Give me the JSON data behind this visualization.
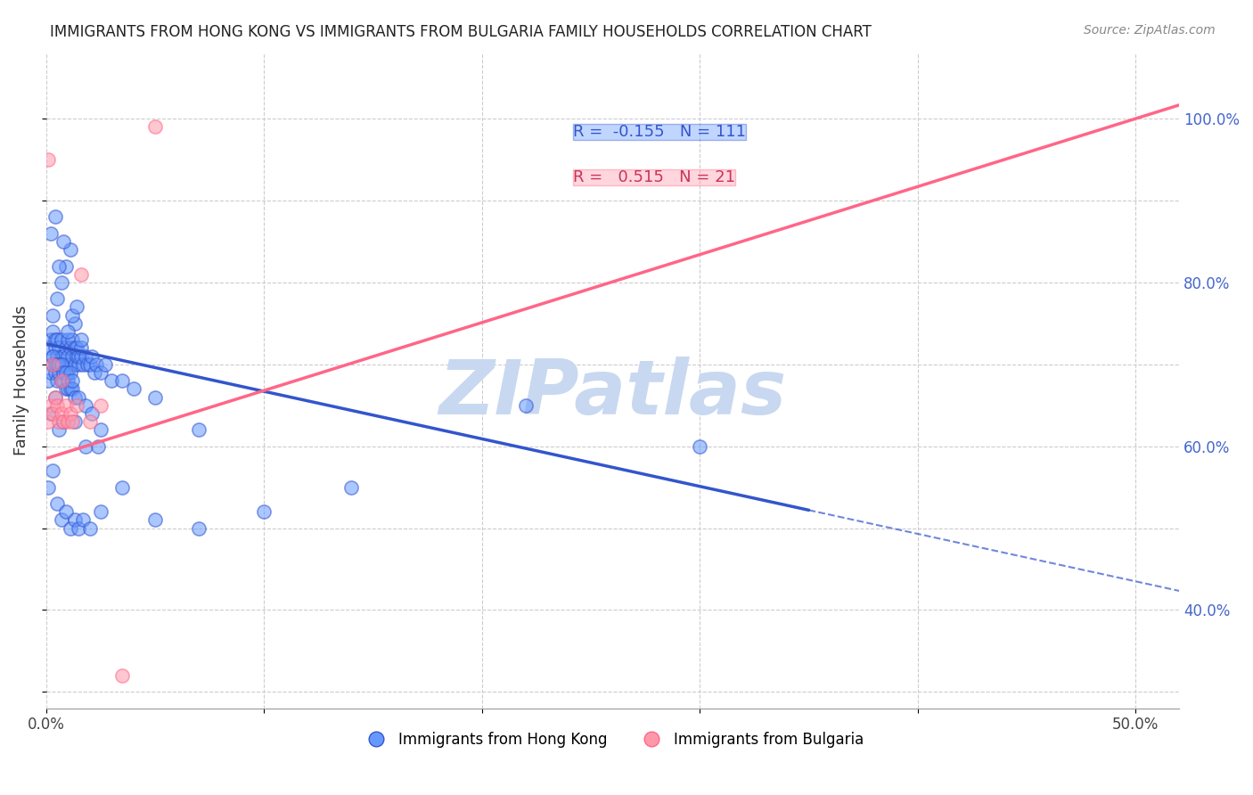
{
  "title": "IMMIGRANTS FROM HONG KONG VS IMMIGRANTS FROM BULGARIA FAMILY HOUSEHOLDS CORRELATION CHART",
  "source": "Source: ZipAtlas.com",
  "xlabel_bottom": "",
  "ylabel": "Family Households",
  "legend_labels": [
    "Immigrants from Hong Kong",
    "Immigrants from Bulgaria"
  ],
  "x_ticks": [
    0.0,
    0.1,
    0.2,
    0.3,
    0.4,
    0.5
  ],
  "x_tick_labels": [
    "0.0%",
    "",
    "",
    "",
    "",
    "50.0%"
  ],
  "y_ticks": [
    0.3,
    0.4,
    0.5,
    0.6,
    0.7,
    0.8,
    0.9,
    1.0
  ],
  "y_tick_labels_right": [
    "",
    "40.0%",
    "",
    "60.0%",
    "",
    "80.0%",
    "",
    "100.0%"
  ],
  "xlim": [
    0.0,
    0.52
  ],
  "ylim": [
    0.28,
    1.08
  ],
  "R_blue": -0.155,
  "N_blue": 111,
  "R_pink": 0.515,
  "N_pink": 21,
  "blue_color": "#6699ff",
  "pink_color": "#ff99aa",
  "blue_line_color": "#3355cc",
  "pink_line_color": "#ff6688",
  "watermark": "ZIPatlas",
  "watermark_color": "#c8d8f0",
  "blue_intercept": 0.725,
  "blue_slope": -0.58,
  "pink_intercept": 0.585,
  "pink_slope": 0.83,
  "hk_x": [
    0.001,
    0.002,
    0.003,
    0.003,
    0.004,
    0.004,
    0.005,
    0.005,
    0.006,
    0.006,
    0.007,
    0.007,
    0.008,
    0.008,
    0.009,
    0.009,
    0.01,
    0.01,
    0.01,
    0.011,
    0.011,
    0.012,
    0.012,
    0.013,
    0.013,
    0.014,
    0.014,
    0.015,
    0.015,
    0.016,
    0.016,
    0.017,
    0.018,
    0.019,
    0.02,
    0.021,
    0.022,
    0.023,
    0.025,
    0.027,
    0.03,
    0.035,
    0.04,
    0.05,
    0.07,
    0.001,
    0.002,
    0.003,
    0.003,
    0.004,
    0.004,
    0.005,
    0.005,
    0.006,
    0.006,
    0.007,
    0.007,
    0.008,
    0.008,
    0.009,
    0.009,
    0.01,
    0.01,
    0.011,
    0.011,
    0.012,
    0.012,
    0.013,
    0.015,
    0.018,
    0.021,
    0.025,
    0.003,
    0.005,
    0.007,
    0.009,
    0.011,
    0.013,
    0.002,
    0.004,
    0.006,
    0.008,
    0.01,
    0.012,
    0.014,
    0.016,
    0.002,
    0.004,
    0.006,
    0.008,
    0.013,
    0.018,
    0.024,
    0.001,
    0.003,
    0.005,
    0.007,
    0.009,
    0.011,
    0.013,
    0.015,
    0.017,
    0.02,
    0.025,
    0.035,
    0.05,
    0.07,
    0.1,
    0.14,
    0.22,
    0.3
  ],
  "hk_y": [
    0.72,
    0.73,
    0.71,
    0.74,
    0.72,
    0.73,
    0.71,
    0.73,
    0.7,
    0.72,
    0.71,
    0.73,
    0.7,
    0.71,
    0.7,
    0.72,
    0.69,
    0.71,
    0.73,
    0.7,
    0.72,
    0.71,
    0.73,
    0.7,
    0.72,
    0.71,
    0.72,
    0.7,
    0.71,
    0.71,
    0.72,
    0.7,
    0.71,
    0.7,
    0.7,
    0.71,
    0.69,
    0.7,
    0.69,
    0.7,
    0.68,
    0.68,
    0.67,
    0.66,
    0.62,
    0.68,
    0.69,
    0.7,
    0.71,
    0.69,
    0.7,
    0.68,
    0.7,
    0.69,
    0.7,
    0.68,
    0.7,
    0.68,
    0.69,
    0.67,
    0.69,
    0.67,
    0.68,
    0.67,
    0.69,
    0.67,
    0.68,
    0.66,
    0.66,
    0.65,
    0.64,
    0.62,
    0.76,
    0.78,
    0.8,
    0.82,
    0.84,
    0.75,
    0.86,
    0.88,
    0.82,
    0.85,
    0.74,
    0.76,
    0.77,
    0.73,
    0.64,
    0.66,
    0.62,
    0.63,
    0.63,
    0.6,
    0.6,
    0.55,
    0.57,
    0.53,
    0.51,
    0.52,
    0.5,
    0.51,
    0.5,
    0.51,
    0.5,
    0.52,
    0.55,
    0.51,
    0.5,
    0.52,
    0.55,
    0.65,
    0.6
  ],
  "bg_x": [
    0.001,
    0.002,
    0.003,
    0.004,
    0.005,
    0.006,
    0.007,
    0.008,
    0.009,
    0.01,
    0.011,
    0.012,
    0.014,
    0.016,
    0.02,
    0.025,
    0.035,
    0.05,
    0.001,
    0.003,
    0.007
  ],
  "bg_y": [
    0.63,
    0.65,
    0.64,
    0.66,
    0.65,
    0.63,
    0.64,
    0.63,
    0.65,
    0.63,
    0.64,
    0.63,
    0.65,
    0.81,
    0.63,
    0.65,
    0.32,
    0.99,
    0.95,
    0.7,
    0.68
  ]
}
